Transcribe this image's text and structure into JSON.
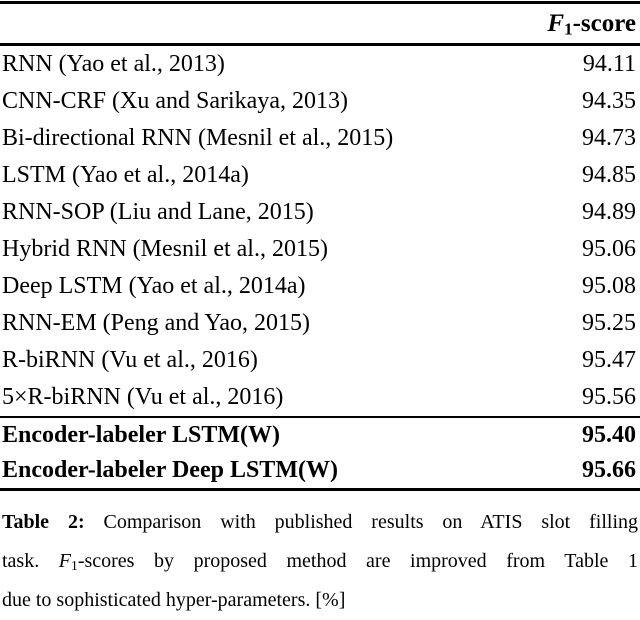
{
  "table": {
    "header": {
      "f": "F",
      "sub": "1",
      "rest": "-score"
    },
    "rows": [
      {
        "method": "RNN (Yao et al., 2013)",
        "score": "94.11"
      },
      {
        "method": "CNN-CRF (Xu and Sarikaya, 2013)",
        "score": "94.35"
      },
      {
        "method": "Bi-directional RNN (Mesnil et al., 2015)",
        "score": "94.73"
      },
      {
        "method": "LSTM (Yao et al., 2014a)",
        "score": "94.85"
      },
      {
        "method": "RNN-SOP (Liu and Lane, 2015)",
        "score": "94.89"
      },
      {
        "method": "Hybrid RNN (Mesnil et al., 2015)",
        "score": "95.06"
      },
      {
        "method": "Deep LSTM (Yao et al., 2014a)",
        "score": "95.08"
      },
      {
        "method": "RNN-EM (Peng and Yao, 2015)",
        "score": "95.25"
      },
      {
        "method": "R-biRNN (Vu et al., 2016)",
        "score": "95.47"
      },
      {
        "method": "5×R-biRNN (Vu et al., 2016)",
        "score": "95.56"
      }
    ],
    "proposed_rows": [
      {
        "method": "Encoder-labeler LSTM(W)",
        "score": "95.40"
      },
      {
        "method": "Encoder-labeler Deep LSTM(W)",
        "score": "95.66"
      }
    ]
  },
  "caption": {
    "label": "Table 2:",
    "line1_rest": "Comparison with published results on ATIS slot filling",
    "line2_pre": "task.",
    "f": "F",
    "sub": "1",
    "line2_rest": "-scores by proposed method are improved from Table 1",
    "line3": "due to sophisticated hyper-parameters. [%]"
  },
  "colors": {
    "text": "#000000",
    "background": "#ffffff",
    "rule": "#000000"
  }
}
